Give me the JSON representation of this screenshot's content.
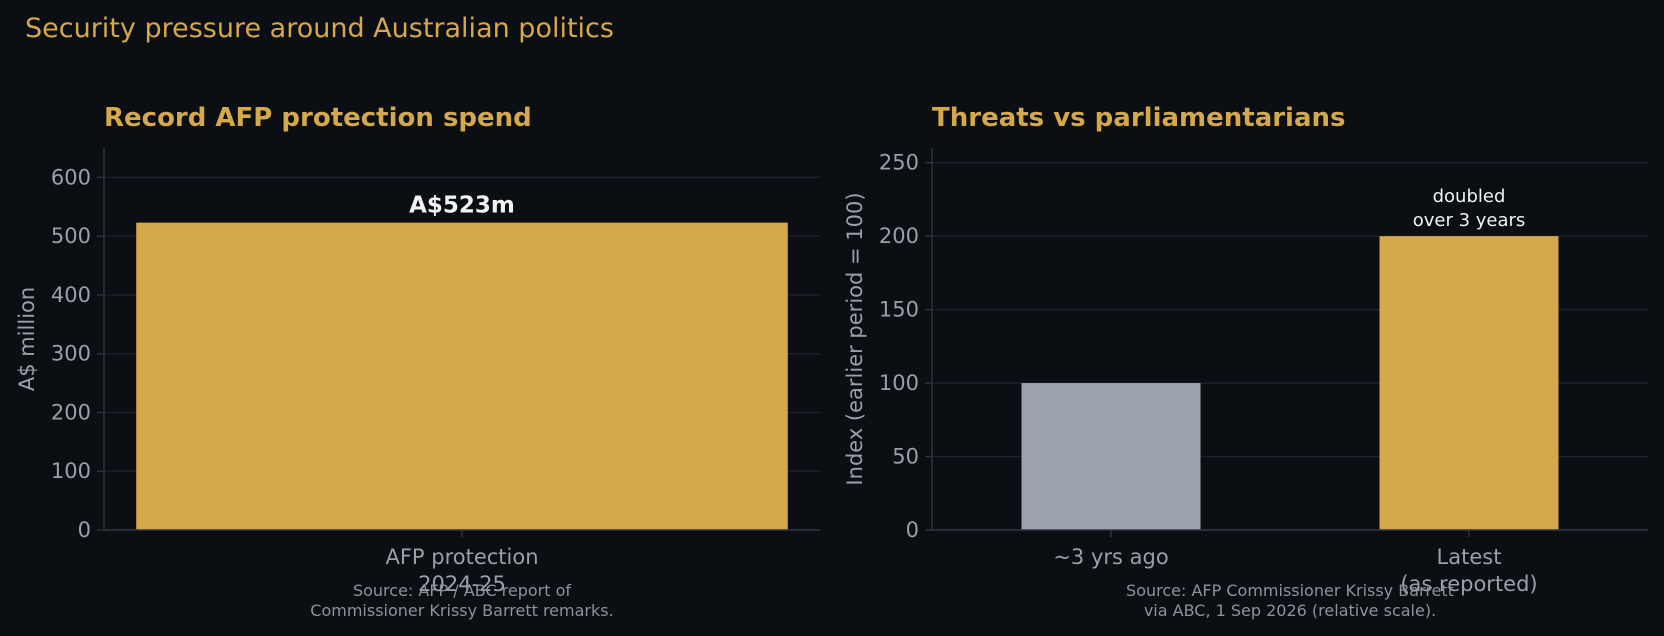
{
  "figure": {
    "title": "Security pressure around Australian politics",
    "background": "#0b0e13",
    "accent": "#d4a84b"
  },
  "chart_data": [
    {
      "type": "bar",
      "title": "Record AFP protection spend",
      "categories": [
        "AFP protection\n2024-25"
      ],
      "values": [
        523
      ],
      "data_labels": [
        "A$523m"
      ],
      "xlabel": "",
      "ylabel": "A$ million",
      "ylim": [
        0,
        650
      ],
      "yticks": [
        0,
        100,
        200,
        300,
        400,
        500,
        600
      ],
      "grid": true,
      "bar_colors": [
        "#d4a84b"
      ],
      "source": "Source: AFP / ABC report of\nCommissioner Krissy Barrett remarks."
    },
    {
      "type": "bar",
      "title": "Threats vs parliamentarians",
      "categories": [
        "~3 yrs ago",
        "Latest\n(as reported)"
      ],
      "values": [
        100,
        200
      ],
      "annotation": {
        "category_index": 1,
        "text": "doubled\nover 3 years"
      },
      "xlabel": "",
      "ylabel": "Index (earlier period = 100)",
      "ylim": [
        0,
        260
      ],
      "yticks": [
        0,
        50,
        100,
        150,
        200,
        250
      ],
      "grid": true,
      "bar_colors": [
        "#9ca3af",
        "#d4a84b"
      ],
      "source": "Source: AFP Commissioner Krissy Barrett\nvia ABC, 1 Sep 2026 (relative scale)."
    }
  ]
}
